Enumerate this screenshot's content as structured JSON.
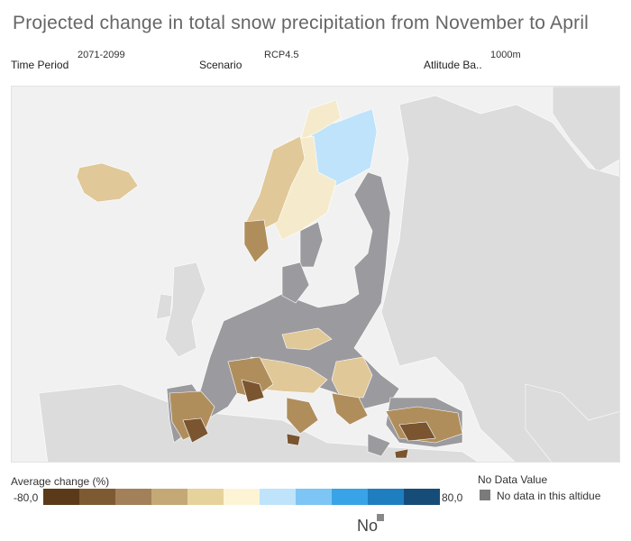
{
  "title": "Projected change in total snow precipitation from November to April",
  "filters": {
    "time_period": {
      "label": "Time Period",
      "value": "2071-2099"
    },
    "scenario": {
      "label": "Scenario",
      "value": "RCP4.5"
    },
    "altitude": {
      "label": "Atlitude Ba..",
      "value": "1000m"
    }
  },
  "legend": {
    "title": "Average change (%)",
    "min_label": "-80,0",
    "max_label": "80,0",
    "colors": [
      "#5a3a18",
      "#7e5a33",
      "#a2815a",
      "#c4a977",
      "#e6d39c",
      "#fdf4d6",
      "#bfe3fa",
      "#7cc5f4",
      "#38a3e6",
      "#1f7ebf",
      "#164d78"
    ]
  },
  "no_data": {
    "title": "No Data Value",
    "label": "No data in this altidue",
    "color": "#7b7b7b"
  },
  "footer_label": "No",
  "map": {
    "colors": {
      "ocean": "#f1f1f1",
      "land_outside": "#dcdcdc",
      "no_data_land": "#9b9b9f",
      "light_blue": "#bfe3fa",
      "pale": "#f5ebcc",
      "tan": "#e0c898",
      "mid_brown": "#b08e5c",
      "dark_brown": "#7a5530"
    }
  }
}
